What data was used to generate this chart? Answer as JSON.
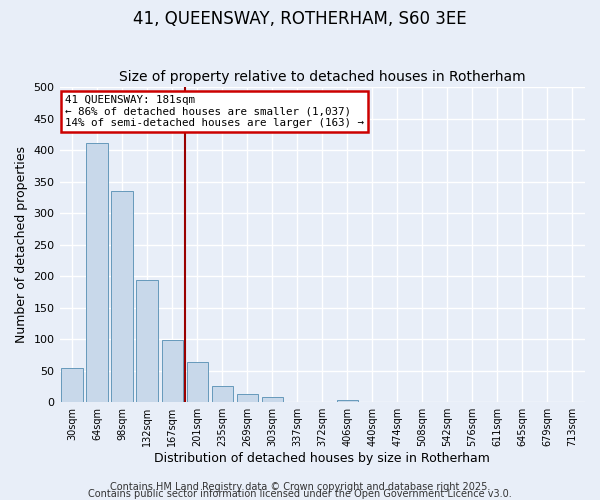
{
  "title": "41, QUEENSWAY, ROTHERHAM, S60 3EE",
  "subtitle": "Size of property relative to detached houses in Rotherham",
  "xlabel": "Distribution of detached houses by size in Rotherham",
  "ylabel": "Number of detached properties",
  "bar_labels": [
    "30sqm",
    "64sqm",
    "98sqm",
    "132sqm",
    "167sqm",
    "201sqm",
    "235sqm",
    "269sqm",
    "303sqm",
    "337sqm",
    "372sqm",
    "406sqm",
    "440sqm",
    "474sqm",
    "508sqm",
    "542sqm",
    "576sqm",
    "611sqm",
    "645sqm",
    "679sqm",
    "713sqm"
  ],
  "bar_values": [
    54,
    411,
    335,
    194,
    98,
    63,
    25,
    13,
    8,
    0,
    0,
    4,
    1,
    0,
    0,
    0,
    0,
    0,
    0,
    0,
    1
  ],
  "bar_color": "#c8d8ea",
  "bar_edge_color": "#6699bb",
  "ylim": [
    0,
    500
  ],
  "yticks": [
    0,
    50,
    100,
    150,
    200,
    250,
    300,
    350,
    400,
    450,
    500
  ],
  "vline_x": 4.5,
  "vline_color": "#990000",
  "annotation_title": "41 QUEENSWAY: 181sqm",
  "annotation_line1": "← 86% of detached houses are smaller (1,037)",
  "annotation_line2": "14% of semi-detached houses are larger (163) →",
  "annotation_box_color": "#cc0000",
  "footnote1": "Contains HM Land Registry data © Crown copyright and database right 2025.",
  "footnote2": "Contains public sector information licensed under the Open Government Licence v3.0.",
  "bg_color": "#e8eef8",
  "grid_color": "#ffffff",
  "title_fontsize": 12,
  "subtitle_fontsize": 10,
  "footnote_fontsize": 7
}
